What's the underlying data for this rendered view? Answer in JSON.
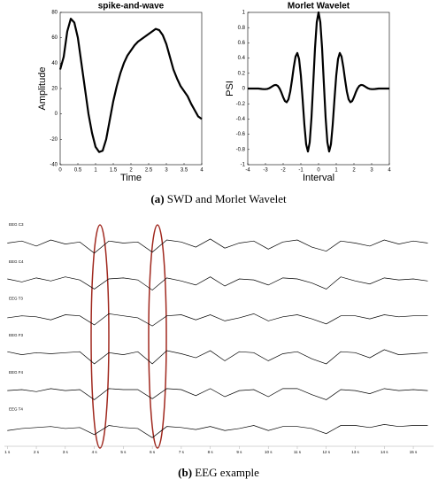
{
  "chart_data": [
    {
      "type": "line",
      "title": "spike-and-wave",
      "xlabel": "Time",
      "ylabel": "Amplitude",
      "color": "#000000",
      "x": [
        0,
        0.1,
        0.2,
        0.3,
        0.4,
        0.5,
        0.6,
        0.7,
        0.8,
        0.9,
        1.0,
        1.1,
        1.2,
        1.3,
        1.4,
        1.5,
        1.6,
        1.7,
        1.8,
        1.9,
        2.0,
        2.1,
        2.2,
        2.3,
        2.4,
        2.5,
        2.6,
        2.7,
        2.8,
        2.9,
        3.0,
        3.1,
        3.2,
        3.3,
        3.4,
        3.5,
        3.6,
        3.7,
        3.8,
        3.9,
        4.0
      ],
      "values": [
        35,
        45,
        65,
        75,
        72,
        60,
        40,
        20,
        0,
        -15,
        -26,
        -30,
        -29,
        -20,
        -5,
        10,
        22,
        32,
        40,
        46,
        50,
        54,
        57,
        59,
        61,
        63,
        65,
        67,
        66,
        62,
        55,
        45,
        35,
        28,
        22,
        18,
        14,
        8,
        3,
        -2,
        -4
      ],
      "xlim": [
        0,
        4
      ],
      "xticks": [
        0,
        0.5,
        1,
        1.5,
        2,
        2.5,
        3,
        3.5,
        4
      ],
      "ylim": [
        -40,
        80
      ],
      "yticks": [
        -40,
        -20,
        0,
        20,
        40,
        60,
        80
      ]
    },
    {
      "type": "line",
      "title": "Morlet Wavelet",
      "xlabel": "Interval",
      "ylabel": "PSI",
      "color": "#000000",
      "x": [
        -4,
        -3.9,
        -3.8,
        -3.7,
        -3.6,
        -3.5,
        -3.4,
        -3.3,
        -3.2,
        -3.1,
        -3.0,
        -2.9,
        -2.8,
        -2.7,
        -2.6,
        -2.5,
        -2.4,
        -2.3,
        -2.2,
        -2.1,
        -2.0,
        -1.9,
        -1.8,
        -1.7,
        -1.6,
        -1.5,
        -1.4,
        -1.3,
        -1.2,
        -1.1,
        -1.0,
        -0.9,
        -0.8,
        -0.7,
        -0.6,
        -0.5,
        -0.4,
        -0.3,
        -0.2,
        -0.1,
        0,
        0.1,
        0.2,
        0.3,
        0.4,
        0.5,
        0.6,
        0.7,
        0.8,
        0.9,
        1.0,
        1.1,
        1.2,
        1.3,
        1.4,
        1.5,
        1.6,
        1.7,
        1.8,
        1.9,
        2.0,
        2.1,
        2.2,
        2.3,
        2.4,
        2.5,
        2.6,
        2.7,
        2.8,
        2.9,
        3.0,
        3.1,
        3.2,
        3.3,
        3.4,
        3.5,
        3.6,
        3.7,
        3.8,
        3.9,
        4.0
      ],
      "values": [
        0,
        0,
        0,
        0,
        0,
        0,
        0,
        -0.003,
        -0.006,
        -0.008,
        -0.008,
        -0.005,
        0.003,
        0.016,
        0.031,
        0.044,
        0.047,
        0.034,
        0,
        -0.052,
        -0.114,
        -0.164,
        -0.18,
        -0.142,
        -0.04,
        0.113,
        0.283,
        0.42,
        0.467,
        0.387,
        0.172,
        -0.141,
        -0.475,
        -0.733,
        -0.827,
        -0.707,
        -0.384,
        0.068,
        0.53,
        0.873,
        1,
        0.873,
        0.53,
        0.068,
        -0.384,
        -0.707,
        -0.827,
        -0.733,
        -0.475,
        -0.141,
        0.172,
        0.387,
        0.467,
        0.42,
        0.283,
        0.113,
        -0.04,
        -0.142,
        -0.18,
        -0.164,
        -0.114,
        -0.052,
        0,
        0.034,
        0.047,
        0.044,
        0.031,
        0.016,
        0.003,
        -0.005,
        -0.008,
        -0.008,
        -0.006,
        -0.003,
        0,
        0,
        0,
        0,
        0,
        0,
        0
      ],
      "xlim": [
        -4,
        4
      ],
      "xticks": [
        -4,
        -3,
        -2,
        -1,
        0,
        1,
        2,
        3,
        4
      ],
      "ylim": [
        -1,
        1
      ],
      "yticks": [
        -1,
        -0.8,
        -0.6,
        -0.4,
        -0.2,
        0,
        0.2,
        0.4,
        0.6,
        0.8,
        1
      ]
    },
    {
      "type": "line",
      "color": "#000000",
      "x": [
        1,
        1.5,
        2,
        2.5,
        3,
        3.5,
        4,
        4.5,
        5,
        5.5,
        6,
        6.5,
        7,
        7.5,
        8,
        8.5,
        9,
        9.5,
        10,
        10.5,
        11,
        11.5,
        12,
        12.5,
        13,
        13.5,
        14,
        14.5,
        15,
        15.5
      ],
      "xlim": [
        0.9,
        15.7
      ],
      "xticks": [
        {
          "value": 1,
          "label": "1 s"
        },
        {
          "value": 2,
          "label": "2 s"
        },
        {
          "value": 3,
          "label": "3 s"
        },
        {
          "value": 4,
          "label": "4 s"
        },
        {
          "value": 5,
          "label": "5 s"
        },
        {
          "value": 6,
          "label": "6 s"
        },
        {
          "value": 7,
          "label": "7 s"
        },
        {
          "value": 8,
          "label": "8 s"
        },
        {
          "value": 9,
          "label": "9 s"
        },
        {
          "value": 10,
          "label": "10 s"
        },
        {
          "value": 11,
          "label": "11 s"
        },
        {
          "value": 12,
          "label": "12 s"
        },
        {
          "value": 13,
          "label": "13 s"
        },
        {
          "value": 14,
          "label": "14 s"
        },
        {
          "value": 15,
          "label": "15 s"
        }
      ],
      "ylim": [
        -1,
        1
      ],
      "series": [
        {
          "name": "EEG C3",
          "values": [
            0.1,
            0.3,
            -0.2,
            0.4,
            0.0,
            0.2,
            -0.9,
            0.3,
            0.1,
            0.2,
            -0.8,
            0.4,
            0.2,
            -0.3,
            0.5,
            -0.4,
            0.1,
            0.3,
            -0.5,
            0.2,
            0.4,
            -0.3,
            -0.7,
            0.3,
            0.1,
            -0.2,
            0.4,
            0.0,
            0.3,
            0.1
          ]
        },
        {
          "name": "EEG C4",
          "values": [
            0.2,
            -0.1,
            0.3,
            0.0,
            0.4,
            0.1,
            -0.8,
            0.2,
            0.3,
            0.1,
            -0.9,
            0.3,
            0.0,
            -0.4,
            0.4,
            -0.5,
            0.2,
            0.1,
            -0.4,
            0.3,
            0.2,
            -0.2,
            -0.8,
            0.4,
            0.0,
            -0.3,
            0.3,
            0.1,
            0.2,
            0.0
          ]
        },
        {
          "name": "EEG T3",
          "values": [
            0.0,
            0.2,
            0.1,
            -0.2,
            0.3,
            0.2,
            -0.7,
            0.4,
            0.2,
            0.0,
            -0.8,
            0.2,
            0.3,
            -0.2,
            0.3,
            -0.3,
            0.0,
            0.4,
            -0.3,
            0.1,
            0.3,
            -0.1,
            -0.6,
            0.2,
            0.2,
            -0.1,
            0.3,
            0.1,
            0.2,
            0.2
          ]
        },
        {
          "name": "EEG F3",
          "values": [
            0.3,
            0.0,
            0.2,
            0.1,
            0.2,
            0.3,
            -0.9,
            0.2,
            0.0,
            0.3,
            -0.9,
            0.4,
            0.1,
            -0.3,
            0.4,
            -0.6,
            0.3,
            0.2,
            -0.6,
            0.1,
            0.3,
            -0.4,
            -0.9,
            0.3,
            0.2,
            -0.3,
            0.5,
            0.0,
            0.1,
            0.2
          ]
        },
        {
          "name": "EEG F4",
          "values": [
            0.1,
            0.2,
            0.0,
            0.3,
            0.1,
            0.2,
            -0.8,
            0.3,
            0.2,
            0.2,
            -0.7,
            0.3,
            0.2,
            -0.4,
            0.3,
            -0.5,
            0.1,
            0.2,
            -0.5,
            0.3,
            0.3,
            -0.3,
            -0.8,
            0.2,
            0.1,
            -0.2,
            0.3,
            0.1,
            0.2,
            0.1
          ]
        },
        {
          "name": "EEG T4",
          "values": [
            -0.2,
            0.0,
            0.1,
            0.2,
            0.0,
            0.1,
            -0.6,
            0.3,
            0.1,
            0.0,
            -0.9,
            0.2,
            0.1,
            -0.1,
            0.2,
            -0.2,
            0.0,
            0.3,
            -0.2,
            0.2,
            0.2,
            0.0,
            -0.5,
            0.3,
            0.3,
            0.1,
            0.4,
            0.2,
            0.3,
            0.3
          ]
        }
      ]
    }
  ],
  "captions": [
    {
      "label": "(a)",
      "text": "SWD and Morlet Wavelet"
    },
    {
      "label": "(b)",
      "text": "EEG example"
    }
  ]
}
